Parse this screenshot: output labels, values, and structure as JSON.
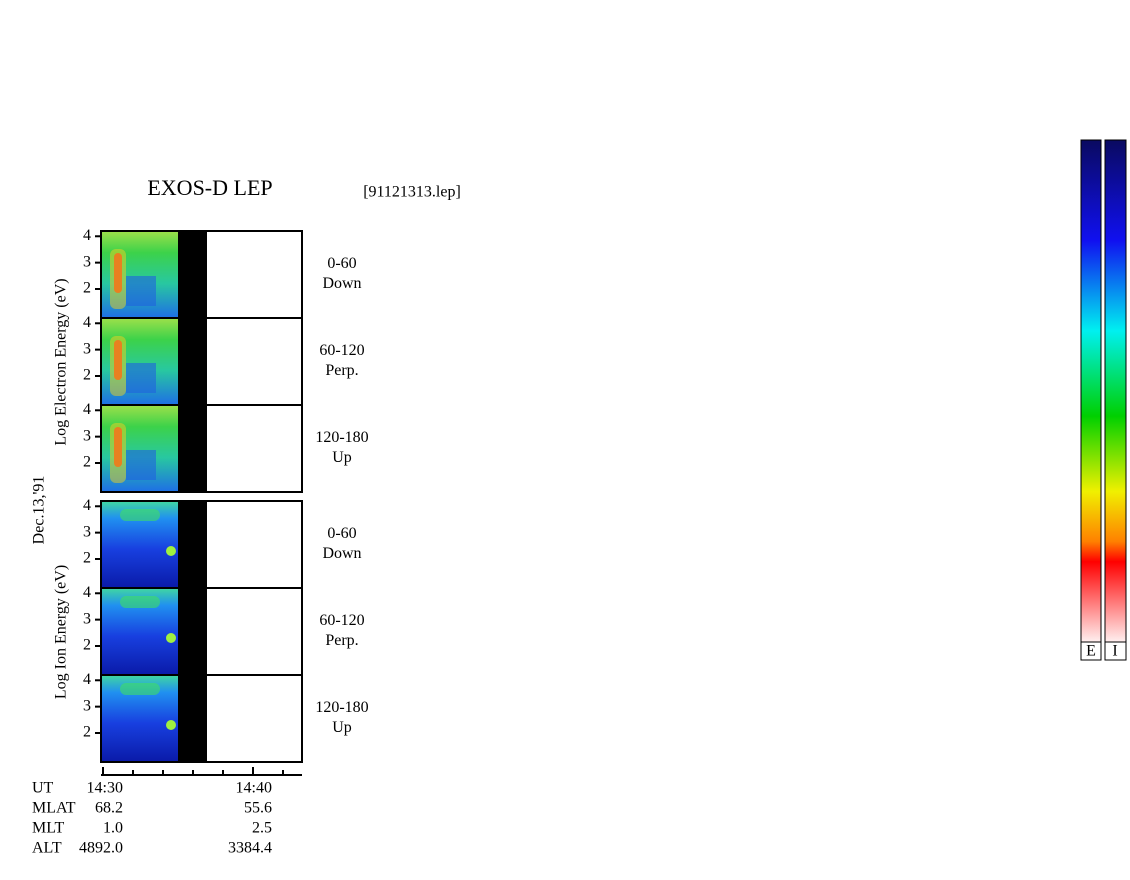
{
  "title": "EXOS-D LEP",
  "file": "[91121313.lep]",
  "date": "Dec.13,'91",
  "electron": {
    "axis_label": "Log  Electron  Energy (eV)",
    "panels": [
      {
        "range": "0-60",
        "direction": "Down"
      },
      {
        "range": "60-120",
        "direction": "Perp."
      },
      {
        "range": "120-180",
        "direction": "Up"
      }
    ]
  },
  "ion": {
    "axis_label": "Log  Ion  Energy (eV)",
    "panels": [
      {
        "range": "0-60",
        "direction": "Down"
      },
      {
        "range": "60-120",
        "direction": "Perp."
      },
      {
        "range": "120-180",
        "direction": "Up"
      }
    ]
  },
  "ylim": [
    0.9,
    4.2
  ],
  "yticks": [
    2,
    3,
    4
  ],
  "orbit": {
    "rows": [
      [
        "UT",
        "14:30",
        "14:40"
      ],
      [
        "MLAT",
        "68.2",
        "55.6"
      ],
      [
        "MLT",
        "1.0",
        "2.5"
      ],
      [
        "ALT",
        "4892.0",
        "3384.4"
      ]
    ]
  },
  "colorbars": [
    "E",
    "I"
  ]
}
